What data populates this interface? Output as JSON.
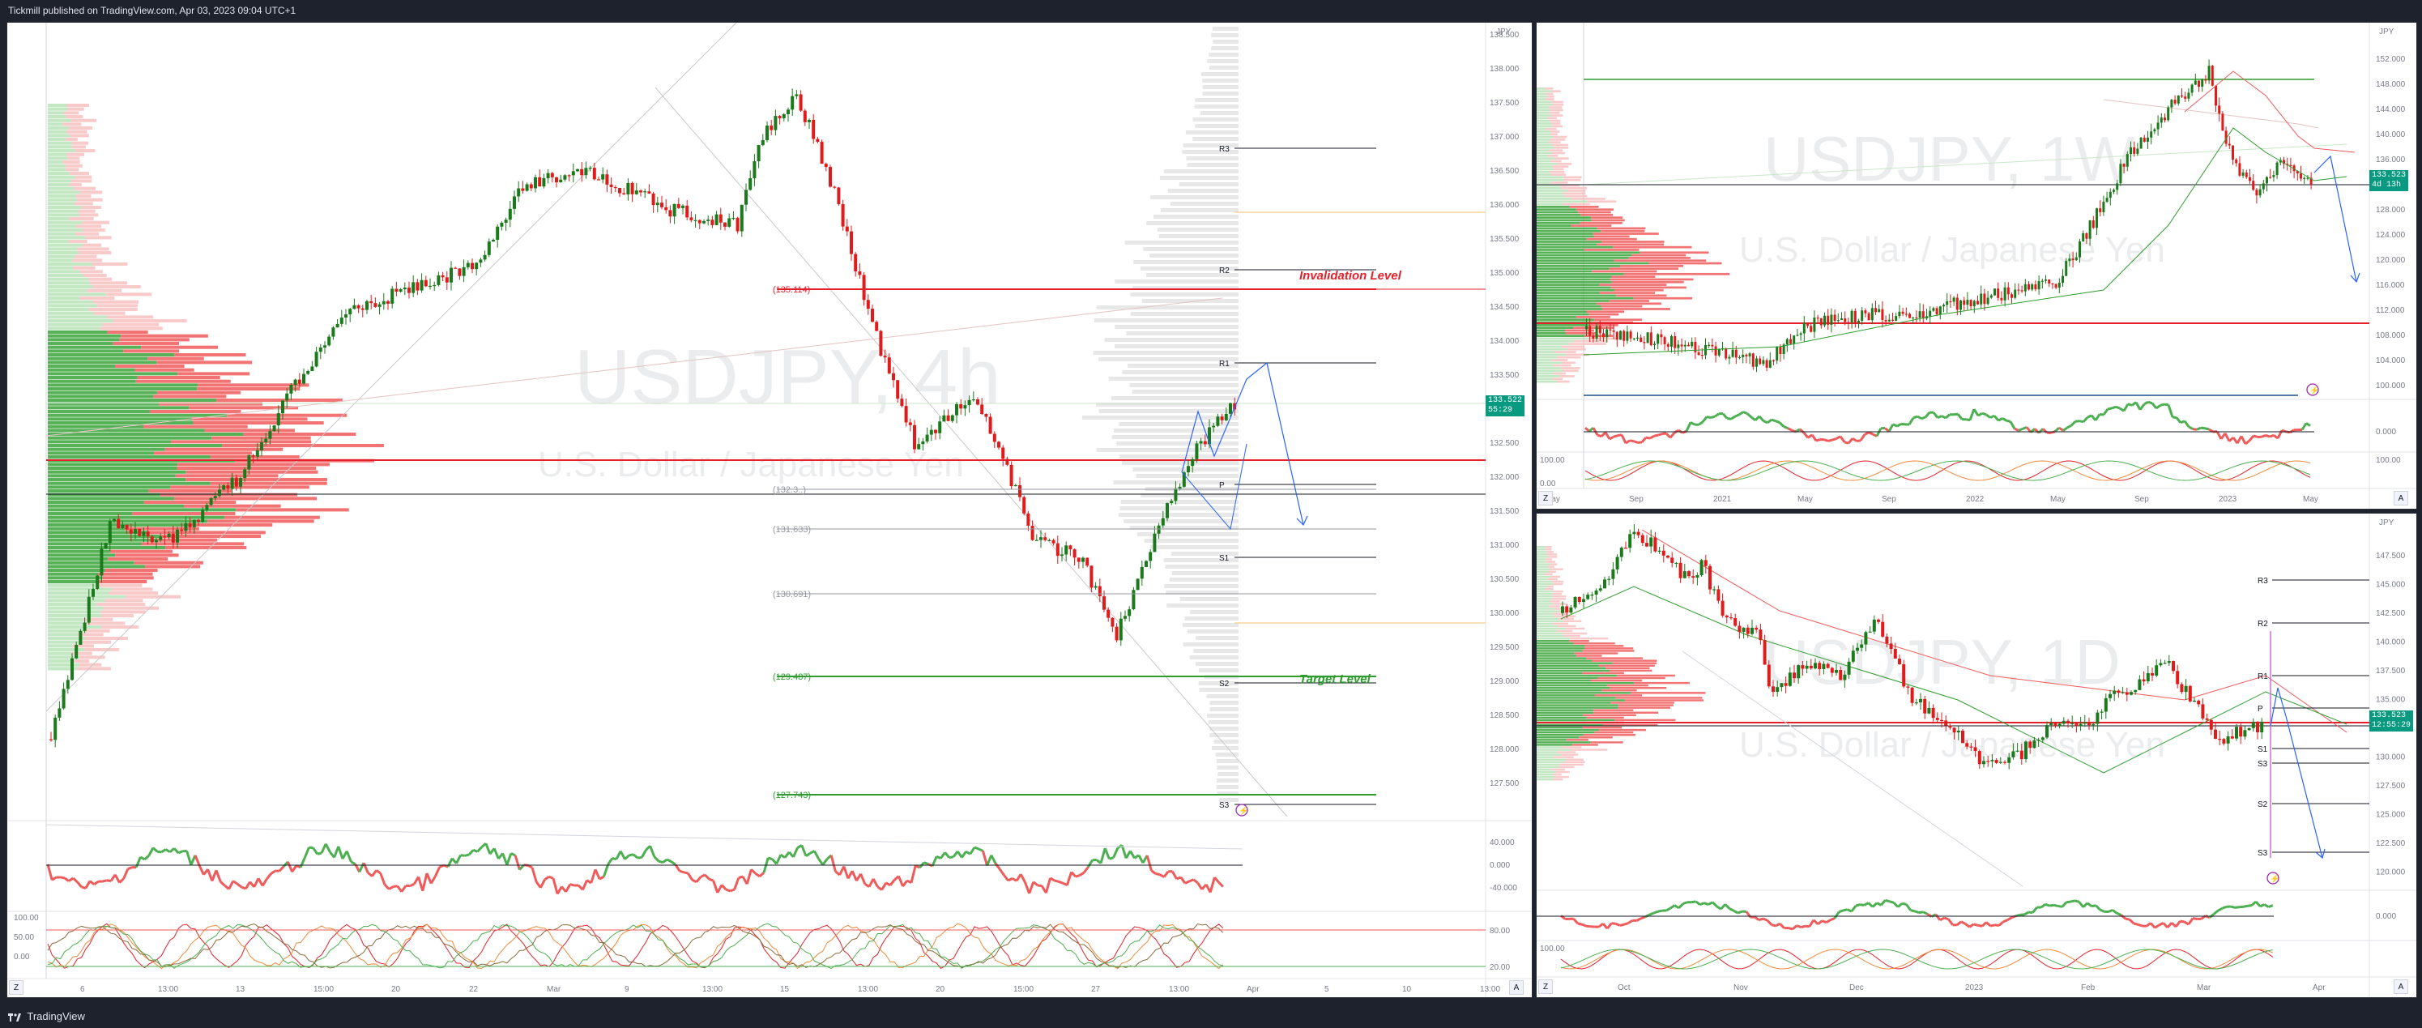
{
  "header": {
    "publisher_text": "Tickmill published on TradingView.com, Apr 03, 2023 09:04 UTC+1"
  },
  "footer": {
    "brand": "TradingView",
    "logo_icon": "tradingview-logo-icon"
  },
  "colors": {
    "up": "#089981",
    "down": "#f23645",
    "up_candle": "#1b7a1b",
    "down_candle": "#e01b1b",
    "resistance": "#e5202b",
    "support": "#2e9d2e",
    "pivot": "#131722",
    "forecast": "#2962ff",
    "price_tag": "#089981"
  },
  "main_chart": {
    "symbol": "USDJPY, 4h",
    "description": "U.S. Dollar / Japanese Yen",
    "currency": "JPY",
    "price_axis": [
      "138.500",
      "138.000",
      "137.500",
      "137.000",
      "136.500",
      "136.000",
      "135.500",
      "135.000",
      "134.500",
      "134.000",
      "133.500",
      "133.000",
      "132.500",
      "132.000",
      "131.500",
      "131.000",
      "130.500",
      "130.000",
      "129.500",
      "129.000",
      "128.500",
      "128.000",
      "127.500"
    ],
    "time_axis": [
      "6",
      "13:00",
      "13",
      "15:00",
      "20",
      "22",
      "Mar",
      "9",
      "13:00",
      "15",
      "13:00",
      "20",
      "15:00",
      "27",
      "13:00",
      "Apr",
      "5",
      "10",
      "13:00"
    ],
    "last_price": "133.522",
    "countdown": "55:29",
    "pivots": [
      "R3",
      "R2",
      "R1",
      "P",
      "S1",
      "S2",
      "S3"
    ],
    "levels": [
      {
        "label": "(135.114)",
        "note": "Invalidation Level"
      },
      {
        "label": "(132.3..)",
        "note": ""
      },
      {
        "label": "(131.633)",
        "note": ""
      },
      {
        "label": "(130.691)",
        "note": ""
      },
      {
        "label": "(129.487)",
        "note": "Target Level"
      },
      {
        "label": "(127.743)",
        "note": ""
      }
    ],
    "rsi_axis": [
      "40.000",
      "0.000",
      "-40.000"
    ],
    "stoch_axis": [
      "100.00",
      "50.00",
      "0.00"
    ],
    "stoch_right": [
      "80.00",
      "20.00"
    ]
  },
  "weekly_chart": {
    "symbol": "USDJPY, 1W",
    "description": "U.S. Dollar / Japanese Yen",
    "currency": "JPY",
    "price_axis": [
      "152.000",
      "148.000",
      "144.000",
      "140.000",
      "136.000",
      "132.000",
      "128.000",
      "124.000",
      "120.000",
      "116.000",
      "112.000",
      "108.000",
      "104.000",
      "100.000"
    ],
    "time_axis": [
      "May",
      "Sep",
      "2021",
      "May",
      "Sep",
      "2022",
      "May",
      "Sep",
      "2023",
      "May"
    ],
    "last_price": "133.523",
    "countdown": "4d 13h",
    "rsi_axis": [
      "0.000"
    ],
    "stoch_axis": [
      "100.00",
      "0.00"
    ],
    "stoch_right": [
      "100.00"
    ]
  },
  "daily_chart": {
    "symbol": "USDJPY, 1D",
    "description": "U.S. Dollar / Japanese Yen",
    "currency": "JPY",
    "price_axis": [
      "147.500",
      "145.000",
      "142.500",
      "140.000",
      "137.500",
      "135.000",
      "132.500",
      "130.000",
      "127.500",
      "125.000",
      "122.500",
      "120.000"
    ],
    "time_axis": [
      "Oct",
      "Nov",
      "Dec",
      "2023",
      "Feb",
      "Mar",
      "Apr"
    ],
    "last_price": "133.523",
    "countdown": "12:55:29",
    "pivots": [
      "R3",
      "R2",
      "R1",
      "P",
      "S1",
      "S3",
      "S2",
      "S3"
    ],
    "rsi_axis": [
      "0.000"
    ],
    "stoch_axis": [
      "100.00"
    ]
  },
  "buttons": {
    "z": "Z",
    "auto": "A"
  }
}
